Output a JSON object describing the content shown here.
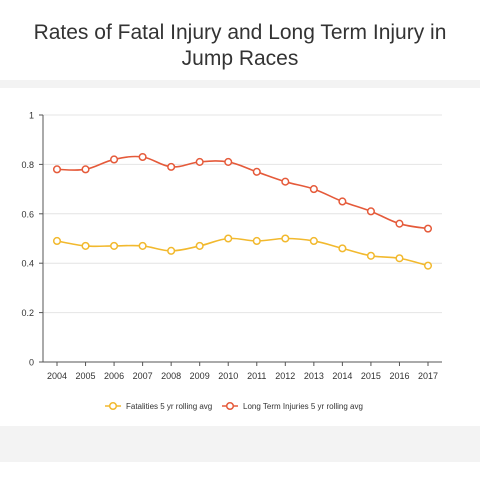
{
  "header": {
    "title": "Rates of Fatal Injury and Long Term Injury in Jump Races"
  },
  "chart_data": {
    "type": "line",
    "title": "Rates of Fatal Injury and Long Term Injury in Jump Races",
    "xlabel": "",
    "ylabel": "",
    "categories": [
      "2004",
      "2005",
      "2006",
      "2007",
      "2008",
      "2009",
      "2010",
      "2011",
      "2012",
      "2013",
      "2014",
      "2015",
      "2016",
      "2017"
    ],
    "ylim": [
      0,
      1
    ],
    "yticks": [
      "0",
      "0.2",
      "0.4",
      "0.6",
      "0.8",
      "1"
    ],
    "grid": true,
    "legend_position": "bottom",
    "series": [
      {
        "name": "Fatalities 5 yr rolling avg",
        "color": "#f2b92e",
        "values": [
          0.49,
          0.47,
          0.47,
          0.47,
          0.45,
          0.47,
          0.5,
          0.49,
          0.5,
          0.49,
          0.46,
          0.43,
          0.42,
          0.39
        ]
      },
      {
        "name": "Long Term Injuries 5 yr rolling avg",
        "color": "#e55a3a",
        "values": [
          0.78,
          0.78,
          0.82,
          0.83,
          0.79,
          0.81,
          0.81,
          0.77,
          0.73,
          0.7,
          0.65,
          0.61,
          0.56,
          0.54
        ]
      }
    ]
  }
}
